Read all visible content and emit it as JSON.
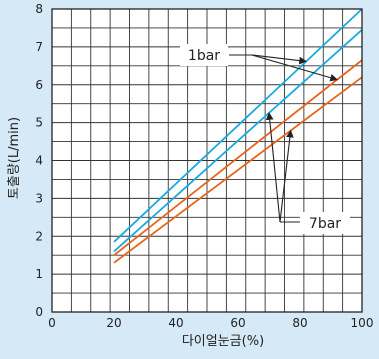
{
  "chart_data": {
    "type": "line",
    "title": "",
    "xlabel": "다이얼눈금(%)",
    "ylabel": "토출량(L/min)",
    "xlim": [
      0,
      100
    ],
    "ylim": [
      0,
      8
    ],
    "x_ticks": [
      "0",
      "20",
      "40",
      "60",
      "80",
      "100"
    ],
    "y_ticks": [
      "0",
      "1",
      "2",
      "3",
      "4",
      "5",
      "6",
      "7",
      "8"
    ],
    "grid": true,
    "series": [
      {
        "x": [
          20,
          100
        ],
        "values": [
          1.85,
          8.0
        ],
        "color": "#1aa8e0"
      },
      {
        "x": [
          20,
          100
        ],
        "values": [
          1.6,
          7.45
        ],
        "color": "#1aa8e0"
      },
      {
        "x": [
          20,
          100
        ],
        "values": [
          1.5,
          6.65
        ],
        "color": "#e8641e"
      },
      {
        "x": [
          20,
          100
        ],
        "values": [
          1.3,
          6.2
        ],
        "color": "#e8641e"
      }
    ],
    "annotations": [
      {
        "text": "1bar",
        "group": "top"
      },
      {
        "text": "7bar",
        "group": "bottom"
      }
    ]
  }
}
